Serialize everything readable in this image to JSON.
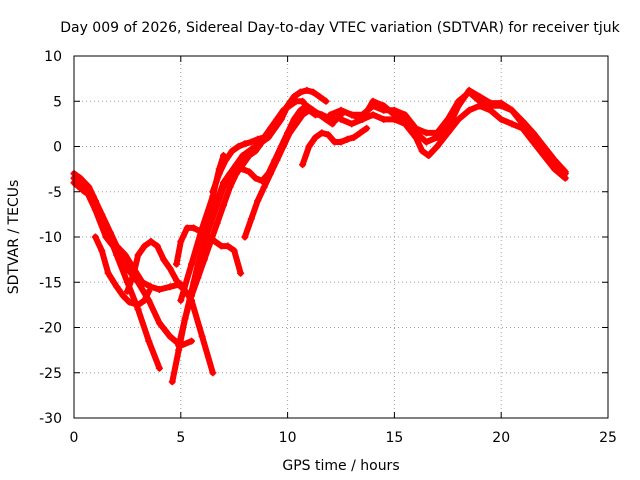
{
  "chart_data": {
    "type": "scatter",
    "title": "Day 009 of 2026, Sidereal Day-to-day VTEC variation (SDTVAR) for receiver tjuk",
    "xlabel": "GPS time / hours",
    "ylabel": "SDTVAR / TECUs",
    "xlim": [
      0,
      25
    ],
    "ylim": [
      -30,
      10
    ],
    "xticks": [
      0,
      5,
      10,
      15,
      20,
      25
    ],
    "yticks": [
      -30,
      -25,
      -20,
      -15,
      -10,
      -5,
      0,
      5,
      10
    ],
    "xtick_labels": [
      "0",
      "5",
      "10",
      "15",
      "20",
      "25"
    ],
    "ytick_labels": [
      "-30",
      "-25",
      "-20",
      "-15",
      "-10",
      "-5",
      "0",
      "5",
      "10"
    ],
    "grid": true,
    "legend": "none",
    "color": "#ff0000",
    "marker": "plus",
    "series": [
      {
        "x": [
          0.0,
          0.3,
          0.7,
          1.0,
          1.5,
          2.0,
          2.5,
          3.0,
          3.5,
          4.0
        ],
        "y": [
          -3.0,
          -3.5,
          -4.5,
          -6.0,
          -9.0,
          -12.0,
          -15.0,
          -18.0,
          -21.5,
          -24.5
        ]
      },
      {
        "x": [
          0.0,
          0.5,
          0.9,
          1.3,
          1.7,
          2.0,
          2.4,
          2.8,
          3.2,
          3.6,
          4.0,
          4.5,
          5.0,
          5.5,
          6.0,
          6.5
        ],
        "y": [
          -4.0,
          -5.0,
          -5.5,
          -7.5,
          -9.5,
          -11.0,
          -12.0,
          -13.5,
          -15.0,
          -15.5,
          -15.8,
          -15.5,
          -15.2,
          -17.0,
          -21.0,
          -25.0
        ]
      },
      {
        "x": [
          0.0,
          0.5,
          1.0,
          1.5,
          2.0,
          2.5,
          3.0,
          3.5,
          4.0,
          4.5,
          5.0,
          5.5
        ],
        "y": [
          -3.5,
          -4.5,
          -7.0,
          -10.0,
          -11.5,
          -13.5,
          -15.0,
          -17.0,
          -19.5,
          -21.0,
          -22.0,
          -21.5
        ]
      },
      {
        "x": [
          1.0,
          1.3,
          1.6,
          2.0,
          2.3,
          2.6,
          3.0,
          3.3,
          3.5
        ],
        "y": [
          -10.0,
          -11.5,
          -14.0,
          -15.5,
          -16.5,
          -17.2,
          -17.5,
          -17.0,
          -16.0
        ]
      },
      {
        "x": [
          2.5,
          2.8,
          3.0,
          3.3,
          3.6,
          3.9,
          4.2,
          4.5,
          4.8,
          5.0
        ],
        "y": [
          -16.0,
          -14.0,
          -12.0,
          -11.0,
          -10.5,
          -11.0,
          -12.5,
          -13.5,
          -14.8,
          -15.5
        ]
      },
      {
        "x": [
          4.6,
          4.9,
          5.2,
          5.5,
          5.8,
          6.1,
          6.4,
          6.7,
          7.0,
          7.3,
          7.6,
          7.9,
          8.2,
          8.5,
          8.8,
          9.1,
          9.4,
          9.7,
          10.0,
          10.3,
          10.6
        ],
        "y": [
          -26.0,
          -22.5,
          -19.0,
          -16.0,
          -13.0,
          -10.5,
          -8.5,
          -6.5,
          -4.5,
          -3.0,
          -2.0,
          -1.0,
          -0.5,
          0.0,
          0.5,
          1.0,
          2.0,
          3.0,
          4.5,
          5.5,
          6.0
        ]
      },
      {
        "x": [
          4.9,
          5.2,
          5.5,
          5.8,
          6.1,
          6.4,
          6.7,
          7.0,
          7.3,
          7.6,
          7.9,
          8.2,
          8.5,
          8.8,
          9.1,
          9.4,
          9.7,
          10.0,
          10.3,
          10.6,
          10.9,
          11.2,
          11.5,
          11.8
        ],
        "y": [
          -22.0,
          -19.0,
          -16.5,
          -14.5,
          -12.5,
          -10.5,
          -8.5,
          -6.5,
          -4.5,
          -3.0,
          -2.0,
          -1.0,
          -0.5,
          0.5,
          1.5,
          2.5,
          3.5,
          4.5,
          5.5,
          6.0,
          6.2,
          6.0,
          5.5,
          5.0
        ]
      },
      {
        "x": [
          4.8,
          5.0,
          5.3,
          5.6,
          6.0,
          6.3,
          6.6,
          6.9,
          7.2,
          7.5,
          7.8
        ],
        "y": [
          -13.0,
          -10.5,
          -9.0,
          -9.0,
          -9.5,
          -10.0,
          -10.5,
          -11.0,
          -11.0,
          -11.5,
          -14.0
        ]
      },
      {
        "x": [
          5.0,
          5.5,
          6.0,
          6.5,
          6.8,
          7.0
        ],
        "y": [
          -17.0,
          -13.0,
          -9.0,
          -5.5,
          -2.5,
          -1.0
        ]
      },
      {
        "x": [
          5.8,
          6.1,
          6.4,
          6.7,
          7.0,
          7.3,
          7.6,
          7.9,
          8.2,
          8.5,
          8.8,
          9.1,
          9.4,
          9.7,
          10.0,
          10.3,
          10.6,
          10.9,
          11.2,
          11.5,
          11.8,
          12.1
        ],
        "y": [
          -13.0,
          -10.5,
          -8.0,
          -6.0,
          -4.0,
          -3.0,
          -2.5,
          -2.5,
          -2.8,
          -3.5,
          -3.8,
          -3.0,
          -1.5,
          0.0,
          1.5,
          3.0,
          4.0,
          4.5,
          4.0,
          3.5,
          3.0,
          2.5
        ]
      },
      {
        "x": [
          6.5,
          6.8,
          7.1,
          7.4,
          7.7,
          8.0,
          8.3,
          8.6,
          8.9,
          9.2,
          9.5,
          9.8,
          10.1,
          10.4,
          10.7,
          11.0,
          11.3,
          11.6,
          11.9,
          12.2
        ],
        "y": [
          -5.0,
          -3.0,
          -1.5,
          -0.5,
          0.0,
          0.3,
          0.5,
          0.8,
          1.0,
          2.0,
          3.0,
          4.0,
          4.5,
          5.0,
          5.0,
          4.0,
          3.5,
          3.5,
          3.2,
          3.0
        ]
      },
      {
        "x": [
          8.0,
          8.3,
          8.6,
          8.9,
          9.2,
          9.5,
          9.8,
          10.1,
          10.4,
          10.7,
          11.0,
          11.3,
          11.6,
          11.9,
          12.2,
          12.5
        ],
        "y": [
          -10.0,
          -8.0,
          -6.0,
          -4.5,
          -3.0,
          -1.5,
          0.0,
          1.5,
          2.5,
          3.5,
          4.0,
          3.8,
          3.5,
          3.0,
          2.8,
          3.5
        ]
      },
      {
        "x": [
          10.7,
          11.0,
          11.3,
          11.6,
          11.9,
          12.2,
          12.5,
          12.8,
          13.1,
          13.4,
          13.7
        ],
        "y": [
          -2.0,
          0.0,
          1.0,
          1.5,
          1.3,
          0.5,
          0.5,
          0.8,
          1.0,
          1.5,
          2.0
        ]
      },
      {
        "x": [
          12.0,
          12.5,
          13.0,
          13.5,
          14.0,
          14.5,
          15.0,
          15.5,
          16.0,
          16.5,
          17.0,
          17.5,
          18.0,
          18.5,
          19.0,
          19.5,
          20.0,
          20.5,
          21.0,
          21.5,
          22.0,
          22.5,
          23.0
        ],
        "y": [
          3.5,
          4.0,
          3.5,
          3.5,
          4.5,
          4.0,
          4.0,
          3.5,
          2.0,
          1.5,
          1.5,
          3.0,
          5.0,
          6.0,
          5.0,
          4.5,
          4.5,
          4.0,
          2.5,
          1.0,
          -0.5,
          -2.0,
          -3.0
        ]
      },
      {
        "x": [
          12.5,
          13.0,
          13.5,
          14.0,
          14.5,
          15.0,
          15.5,
          16.0,
          16.3,
          16.6,
          17.0,
          17.5,
          18.0,
          18.5,
          19.0,
          19.5,
          20.0,
          20.5,
          21.0,
          21.5,
          22.0,
          22.5,
          23.0
        ],
        "y": [
          3.0,
          2.5,
          3.0,
          3.5,
          3.0,
          3.0,
          2.5,
          1.0,
          -0.5,
          -1.0,
          0.0,
          1.5,
          3.0,
          4.0,
          4.5,
          4.0,
          3.0,
          2.5,
          2.0,
          0.5,
          -1.0,
          -2.5,
          -3.5
        ]
      },
      {
        "x": [
          13.0,
          13.5,
          14.0,
          14.5,
          15.0,
          15.5,
          16.0,
          16.5,
          17.0,
          17.5,
          18.0,
          18.5,
          19.0,
          19.5,
          20.0,
          20.5,
          21.0,
          21.5,
          22.0,
          22.5,
          23.0
        ],
        "y": [
          3.5,
          3.0,
          5.0,
          4.5,
          3.5,
          3.0,
          1.5,
          0.5,
          1.0,
          2.0,
          4.5,
          6.2,
          5.5,
          4.8,
          4.8,
          4.0,
          2.8,
          1.5,
          0.0,
          -1.5,
          -2.8
        ]
      }
    ]
  }
}
